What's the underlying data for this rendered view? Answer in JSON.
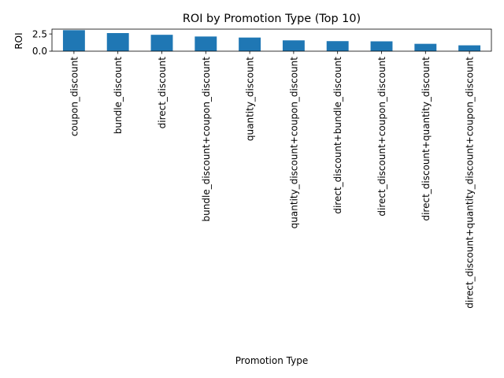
{
  "chart_data": {
    "type": "bar",
    "title": "ROI by Promotion Type (Top 10)",
    "xlabel": "Promotion Type",
    "ylabel": "ROI",
    "categories": [
      "coupon_discount",
      "bundle_discount",
      "direct_discount",
      "bundle_discount+coupon_discount",
      "quantity_discount",
      "quantity_discount+coupon_discount",
      "direct_discount+bundle_discount",
      "direct_discount+coupon_discount",
      "direct_discount+quantity_discount",
      "direct_discount+quantity_discount+coupon_discount"
    ],
    "values": [
      3.05,
      2.63,
      2.38,
      2.13,
      1.98,
      1.57,
      1.46,
      1.43,
      1.07,
      0.85
    ],
    "ylim": [
      0,
      3.2
    ],
    "yticks": [
      0.0,
      2.5
    ],
    "ytick_labels": [
      "0.0",
      "2.5"
    ],
    "bar_color": "#1f77b4",
    "grid": false,
    "legend": false
  }
}
